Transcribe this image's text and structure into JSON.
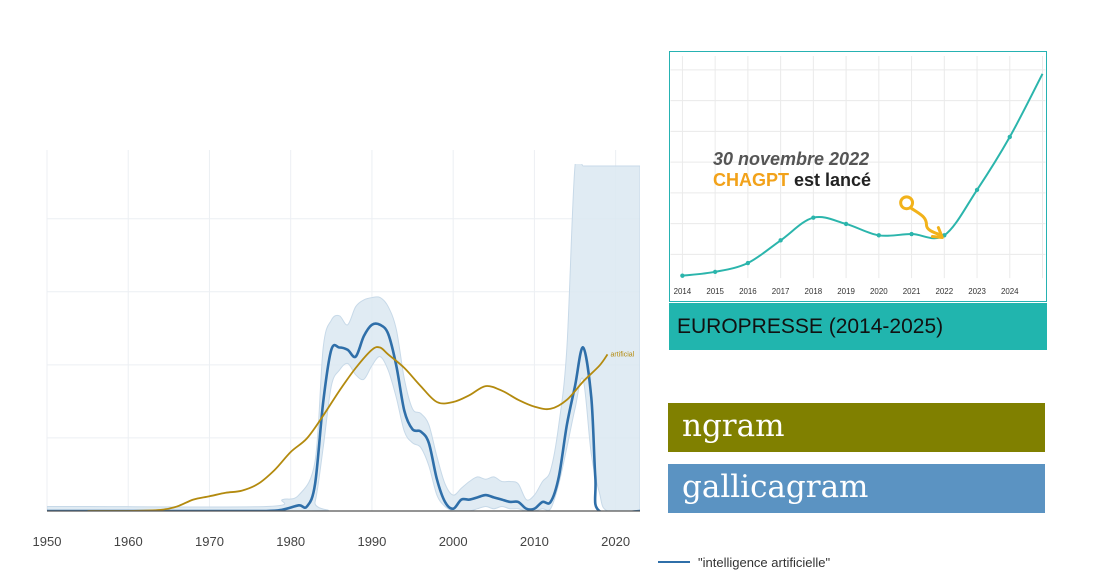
{
  "colors": {
    "series_primary": "#2f6fa9",
    "series_secondary": "#b38a0e",
    "confidence_band": "#dbe7f1",
    "inset_line": "#2bb5ac",
    "ngram_label": "#808000",
    "gallicagram_label": "#5b93c2",
    "inset_caption": "#21b5ae",
    "annotation_brand": "#f2a21a"
  },
  "chart_data": [
    {
      "type": "line",
      "title": "",
      "xlabel": "",
      "ylabel": "",
      "x_ticks": [
        "1950",
        "1960",
        "1970",
        "1980",
        "1990",
        "2000",
        "2010",
        "2020"
      ],
      "xlim": [
        1950,
        2023
      ],
      "ylim": [
        0,
        1
      ],
      "grid": true,
      "legend": "bottom",
      "series": [
        {
          "name": "\"intelligence artificielle\"",
          "color": "#2f6fa9",
          "points": [
            [
              1950,
              0
            ],
            [
              1970,
              0
            ],
            [
              1977,
              0
            ],
            [
              1979,
              0.006
            ],
            [
              1981,
              0.025
            ],
            [
              1982,
              0.02
            ],
            [
              1983,
              0.12
            ],
            [
              1984,
              0.48
            ],
            [
              1985,
              0.71
            ],
            [
              1986,
              0.72
            ],
            [
              1987,
              0.71
            ],
            [
              1988,
              0.68
            ],
            [
              1989,
              0.77
            ],
            [
              1990,
              0.82
            ],
            [
              1991,
              0.82
            ],
            [
              1992,
              0.78
            ],
            [
              1993,
              0.64
            ],
            [
              1994,
              0.44
            ],
            [
              1995,
              0.36
            ],
            [
              1996,
              0.35
            ],
            [
              1997,
              0.3
            ],
            [
              1998,
              0.14
            ],
            [
              1999,
              0.04
            ],
            [
              2000,
              0.01
            ],
            [
              2001,
              0.05
            ],
            [
              2002,
              0.05
            ],
            [
              2003,
              0.06
            ],
            [
              2004,
              0.07
            ],
            [
              2005,
              0.06
            ],
            [
              2006,
              0.05
            ],
            [
              2007,
              0.04
            ],
            [
              2008,
              0.04
            ],
            [
              2009,
              0.01
            ],
            [
              2010,
              0.01
            ],
            [
              2011,
              0.04
            ],
            [
              2012,
              0.04
            ],
            [
              2013,
              0.15
            ],
            [
              2014,
              0.38
            ],
            [
              2015,
              0.55
            ],
            [
              2016,
              0.72
            ],
            [
              2017,
              0.5
            ],
            [
              2017.5,
              0.15
            ],
            [
              2018,
              0
            ],
            [
              2023,
              0
            ]
          ]
        },
        {
          "name": "",
          "color": "#b38a0e",
          "points": [
            [
              1955,
              0
            ],
            [
              1960,
              0
            ],
            [
              1964,
              0.005
            ],
            [
              1966,
              0.02
            ],
            [
              1968,
              0.05
            ],
            [
              1970,
              0.065
            ],
            [
              1972,
              0.08
            ],
            [
              1974,
              0.09
            ],
            [
              1976,
              0.12
            ],
            [
              1978,
              0.18
            ],
            [
              1980,
              0.26
            ],
            [
              1982,
              0.32
            ],
            [
              1984,
              0.42
            ],
            [
              1986,
              0.53
            ],
            [
              1988,
              0.63
            ],
            [
              1990,
              0.71
            ],
            [
              1991,
              0.72
            ],
            [
              1992,
              0.69
            ],
            [
              1994,
              0.63
            ],
            [
              1996,
              0.55
            ],
            [
              1998,
              0.48
            ],
            [
              2000,
              0.48
            ],
            [
              2002,
              0.51
            ],
            [
              2004,
              0.55
            ],
            [
              2006,
              0.53
            ],
            [
              2008,
              0.49
            ],
            [
              2010,
              0.46
            ],
            [
              2012,
              0.45
            ],
            [
              2014,
              0.49
            ],
            [
              2016,
              0.57
            ],
            [
              2018,
              0.64
            ],
            [
              2019,
              0.69
            ]
          ]
        }
      ],
      "band": {
        "color": "#dbe7f1",
        "upper": [
          [
            1950,
            0.02
          ],
          [
            1955,
            0.02
          ],
          [
            1977,
            0.02
          ],
          [
            1979,
            0.05
          ],
          [
            1981,
            0.07
          ],
          [
            1983,
            0.22
          ],
          [
            1984,
            0.72
          ],
          [
            1985,
            0.84
          ],
          [
            1986,
            0.86
          ],
          [
            1987,
            0.82
          ],
          [
            1988,
            0.9
          ],
          [
            1989,
            0.93
          ],
          [
            1990,
            0.94
          ],
          [
            1991,
            0.94
          ],
          [
            1992,
            0.9
          ],
          [
            1993,
            0.8
          ],
          [
            1994,
            0.58
          ],
          [
            1995,
            0.45
          ],
          [
            1996,
            0.43
          ],
          [
            1997,
            0.38
          ],
          [
            1998,
            0.24
          ],
          [
            1999,
            0.12
          ],
          [
            2000,
            0.07
          ],
          [
            2001,
            0.1
          ],
          [
            2002,
            0.13
          ],
          [
            2003,
            0.15
          ],
          [
            2004,
            0.14
          ],
          [
            2005,
            0.15
          ],
          [
            2006,
            0.13
          ],
          [
            2007,
            0.13
          ],
          [
            2008,
            0.12
          ],
          [
            2009,
            0.05
          ],
          [
            2010,
            0.07
          ],
          [
            2011,
            0.13
          ],
          [
            2012,
            0.18
          ],
          [
            2013,
            0.38
          ],
          [
            2014,
            0.72
          ],
          [
            2015,
            1.88
          ],
          [
            2016,
            2.12
          ],
          [
            2017,
            1.72
          ],
          [
            2018,
            1.55
          ],
          [
            2019,
            2.1
          ],
          [
            2023,
            2.1
          ]
        ],
        "lower": [
          [
            2023,
            0
          ],
          [
            2019,
            0
          ],
          [
            2018,
            0.08
          ],
          [
            2017,
            0.25
          ],
          [
            2016,
            0.58
          ],
          [
            2015,
            0.45
          ],
          [
            2014,
            0.28
          ],
          [
            2013,
            0.12
          ],
          [
            2012,
            0.01
          ],
          [
            2011,
            0.01
          ],
          [
            2010,
            0
          ],
          [
            2009,
            0
          ],
          [
            2008,
            0.01
          ],
          [
            2007,
            0.01
          ],
          [
            2006,
            0.02
          ],
          [
            2005,
            0.01
          ],
          [
            2004,
            0.02
          ],
          [
            2003,
            0.01
          ],
          [
            2002,
            0
          ],
          [
            2001,
            0
          ],
          [
            2000,
            0
          ],
          [
            1999,
            0.02
          ],
          [
            1998,
            0.07
          ],
          [
            1997,
            0.2
          ],
          [
            1996,
            0.28
          ],
          [
            1995,
            0.3
          ],
          [
            1994,
            0.35
          ],
          [
            1993,
            0.5
          ],
          [
            1992,
            0.62
          ],
          [
            1991,
            0.68
          ],
          [
            1990,
            0.64
          ],
          [
            1989,
            0.58
          ],
          [
            1988,
            0.6
          ],
          [
            1987,
            0.65
          ],
          [
            1986,
            0.62
          ],
          [
            1985,
            0.55
          ],
          [
            1984,
            0.28
          ],
          [
            1983,
            0.04
          ],
          [
            1982,
            0
          ],
          [
            1950,
            0
          ]
        ]
      },
      "end_annotation": "artificial"
    },
    {
      "type": "line",
      "title": "",
      "x": [
        "2014",
        "2015",
        "2016",
        "2017",
        "2018",
        "2019",
        "2020",
        "2021",
        "2022",
        "2023",
        "2024",
        "2025"
      ],
      "values": [
        0.02,
        0.05,
        0.12,
        0.3,
        0.48,
        0.43,
        0.34,
        0.35,
        0.34,
        0.7,
        1.12,
        1.62
      ],
      "ylim": [
        0,
        1.62
      ],
      "grid": true,
      "legend": "none",
      "caption": "EUROPRESSE (2014-2025)",
      "annotation": {
        "date": "30 novembre 2022",
        "event_brand": "CHAGPT",
        "event_rest": " est lancé"
      }
    }
  ],
  "corpus_labels": {
    "ngram": "ngram",
    "gallicagram": "gallicagram"
  }
}
